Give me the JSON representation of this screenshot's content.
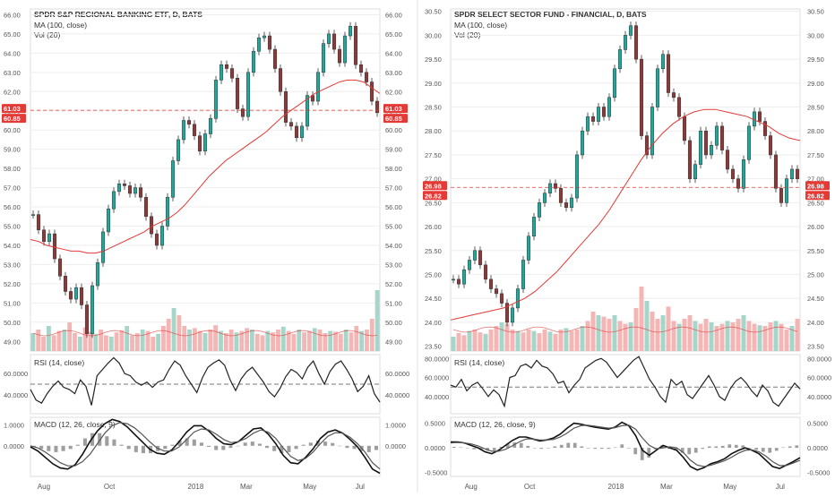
{
  "colors": {
    "up": "#26a69a",
    "down": "#ef5350",
    "candle_body": "#8b3a3a",
    "ma": "#e53935",
    "vol_up": "#a5d6c9",
    "vol_down": "#f4b5b5",
    "grid": "#eeeeee",
    "axis": "#555555",
    "price_label_bg": "#e53935",
    "text": "#333333"
  },
  "chart_data": [
    {
      "type": "line",
      "title": "SPDR S&P REGIONAL BANKING ETF, D, BATS",
      "legend": [
        "MA (100, close)",
        "Vol (20)"
      ],
      "x_labels": [
        "Aug",
        "Oct",
        "2018",
        "Mar",
        "May",
        "Jul"
      ],
      "price_axis": [
        66.0,
        65.0,
        64.0,
        63.0,
        62.0,
        61.0,
        60.0,
        59.0,
        58.0,
        57.0,
        56.0,
        55.0,
        54.0,
        53.0,
        52.0,
        51.0,
        50.0,
        49.0
      ],
      "price_range": [
        48.5,
        66.3
      ],
      "last_prices": [
        "61.03",
        "60.85"
      ],
      "price_line": 61.03,
      "close_series": [
        55.6,
        54.8,
        54.2,
        54.6,
        53.3,
        52.4,
        51.6,
        51.2,
        51.8,
        50.9,
        49.4,
        51.9,
        53.1,
        54.7,
        55.9,
        56.8,
        57.2,
        57.1,
        56.7,
        57.0,
        56.5,
        55.5,
        54.6,
        54.0,
        55.0,
        56.5,
        58.4,
        59.5,
        60.5,
        60.3,
        59.7,
        58.9,
        59.8,
        60.6,
        62.6,
        63.4,
        63.2,
        62.7,
        61.1,
        60.7,
        63.0,
        64.1,
        64.8,
        64.9,
        64.2,
        63.2,
        62.0,
        60.4,
        60.2,
        59.6,
        60.2,
        61.8,
        61.5,
        63.0,
        64.5,
        65.0,
        64.2,
        63.5,
        64.9,
        65.4,
        63.4,
        63.0,
        62.5,
        61.5,
        60.9
      ],
      "ma_series": [
        54.3,
        54.2,
        54.0,
        53.9,
        53.8,
        53.7,
        53.7,
        53.6,
        53.6,
        53.7,
        53.9,
        54.1,
        54.3,
        54.5,
        54.7,
        55.0,
        55.2,
        55.4,
        55.7,
        56.1,
        56.6,
        57.1,
        57.6,
        58.0,
        58.4,
        58.7,
        59.0,
        59.3,
        59.6,
        59.9,
        60.3,
        60.7,
        61.0,
        61.3,
        61.6,
        61.9,
        62.1,
        62.3,
        62.5,
        62.6,
        62.6,
        62.5,
        62.2,
        61.9
      ],
      "rsi": {
        "label": "RSI (14, close)",
        "axis": [
          "60.0000",
          "40.0000"
        ],
        "range": [
          22,
          78
        ],
        "level": 50,
        "series": [
          45,
          35,
          32,
          41,
          48,
          53,
          47,
          45,
          41,
          54,
          48,
          30,
          58,
          64,
          70,
          75,
          70,
          60,
          58,
          52,
          49,
          52,
          47,
          52,
          54,
          64,
          72,
          68,
          58,
          50,
          42,
          56,
          66,
          70,
          73,
          68,
          54,
          44,
          55,
          62,
          66,
          59,
          52,
          43,
          38,
          46,
          57,
          64,
          61,
          55,
          66,
          72,
          60,
          50,
          62,
          69,
          72,
          64,
          55,
          43,
          48,
          58,
          41,
          33
        ]
      },
      "macd": {
        "label": "MACD (12, 26, close, 9)",
        "axis": [
          "1.0000",
          "0.0000"
        ],
        "range": [
          -1.45,
          1.35
        ],
        "macd": [
          -0.05,
          -0.25,
          -0.55,
          -0.85,
          -1.05,
          -1.1,
          -0.9,
          -0.4,
          0.2,
          0.7,
          1.05,
          1.25,
          1.15,
          0.9,
          0.55,
          0.2,
          -0.15,
          -0.35,
          -0.4,
          -0.2,
          0.2,
          0.65,
          0.95,
          0.95,
          0.7,
          0.35,
          0.1,
          0.05,
          0.2,
          0.5,
          0.8,
          0.85,
          0.55,
          0.1,
          -0.45,
          -0.8,
          -0.85,
          -0.55,
          -0.15,
          0.35,
          0.65,
          0.75,
          0.6,
          0.3,
          -0.05,
          -0.55,
          -1.1,
          -1.3
        ],
        "signal": [
          0,
          -0.1,
          -0.3,
          -0.55,
          -0.8,
          -0.95,
          -0.95,
          -0.75,
          -0.4,
          0.1,
          0.6,
          0.95,
          1.1,
          1.05,
          0.85,
          0.55,
          0.2,
          -0.1,
          -0.25,
          -0.25,
          -0.05,
          0.3,
          0.65,
          0.8,
          0.75,
          0.55,
          0.3,
          0.15,
          0.2,
          0.35,
          0.6,
          0.75,
          0.65,
          0.35,
          -0.1,
          -0.5,
          -0.7,
          -0.6,
          -0.3,
          0.1,
          0.45,
          0.62,
          0.6,
          0.4,
          0.1,
          -0.3,
          -0.8,
          -1.1
        ]
      },
      "volume": {
        "ma_level": 0.25,
        "series": [
          0.25,
          0.3,
          0.2,
          0.35,
          0.22,
          0.28,
          0.3,
          0.4,
          0.25,
          0.2,
          0.33,
          0.27,
          0.24,
          0.3,
          0.22,
          0.2,
          0.26,
          0.29,
          0.35,
          0.22,
          0.25,
          0.3,
          0.28,
          0.2,
          0.24,
          0.35,
          0.45,
          0.6,
          0.5,
          0.35,
          0.3,
          0.32,
          0.28,
          0.25,
          0.3,
          0.36,
          0.28,
          0.25,
          0.3,
          0.26,
          0.28,
          0.32,
          0.3,
          0.24,
          0.22,
          0.28,
          0.26,
          0.3,
          0.34,
          0.28,
          0.24,
          0.3,
          0.26,
          0.28,
          0.32,
          0.3,
          0.25,
          0.28,
          0.27,
          0.24,
          0.3,
          0.26,
          0.35,
          0.28,
          0.3,
          0.45,
          0.85
        ]
      }
    },
    {
      "type": "line",
      "title": "SPDR SELECT SECTOR FUND - FINANCIAL, D, BATS",
      "legend": [
        "MA (100, close)",
        "Vol (20)"
      ],
      "x_labels": [
        "Aug",
        "Oct",
        "2018",
        "Mar",
        "May",
        "Jul"
      ],
      "price_axis": [
        30.5,
        30.0,
        29.5,
        29.0,
        28.5,
        28.0,
        27.5,
        27.0,
        26.5,
        26.0,
        25.5,
        25.0,
        24.5,
        24.0,
        23.5
      ],
      "price_range": [
        23.4,
        30.55
      ],
      "last_prices": [
        "26.98",
        "26.82"
      ],
      "price_line": 26.82,
      "close_series": [
        24.9,
        24.8,
        25.1,
        25.3,
        25.5,
        25.2,
        24.9,
        24.7,
        24.6,
        24.4,
        24.0,
        24.3,
        24.7,
        25.3,
        25.8,
        26.2,
        26.5,
        26.7,
        26.9,
        26.8,
        26.5,
        26.4,
        26.6,
        27.5,
        28.0,
        28.3,
        28.2,
        28.5,
        28.3,
        28.7,
        29.3,
        29.7,
        30.0,
        30.2,
        29.5,
        27.9,
        27.5,
        28.5,
        29.3,
        29.6,
        28.8,
        28.7,
        28.3,
        27.8,
        27.0,
        27.3,
        28.0,
        27.5,
        27.7,
        28.1,
        27.6,
        27.2,
        27.0,
        26.8,
        27.4,
        28.1,
        28.4,
        28.2,
        27.9,
        27.5,
        26.8,
        26.5,
        27.0,
        27.2,
        27.0
      ],
      "ma_series": [
        24.05,
        24.1,
        24.15,
        24.2,
        24.25,
        24.3,
        24.4,
        24.5,
        24.65,
        24.85,
        25.05,
        25.3,
        25.55,
        25.8,
        26.05,
        26.35,
        26.7,
        27.05,
        27.4,
        27.7,
        27.95,
        28.15,
        28.3,
        28.4,
        28.45,
        28.45,
        28.4,
        28.35,
        28.3,
        28.2,
        28.1,
        27.95,
        27.85,
        27.8
      ],
      "rsi": {
        "label": "RSI (14, close)",
        "axis": [
          "80.0000",
          "60.0000",
          "40.0000"
        ],
        "range": [
          22,
          84
        ],
        "level": 50,
        "series": [
          52,
          50,
          58,
          46,
          52,
          55,
          48,
          40,
          47,
          42,
          30,
          60,
          62,
          72,
          74,
          70,
          78,
          72,
          70,
          64,
          54,
          56,
          44,
          52,
          58,
          70,
          74,
          78,
          80,
          76,
          68,
          60,
          66,
          72,
          78,
          82,
          70,
          58,
          50,
          40,
          34,
          58,
          52,
          56,
          42,
          38,
          46,
          54,
          62,
          52,
          40,
          36,
          48,
          56,
          60,
          54,
          46,
          40,
          52,
          46,
          34,
          30,
          38,
          46,
          54,
          48
        ]
      },
      "macd": {
        "label": "MACD (12, 26, close, 9)",
        "axis": [
          "0.5000",
          "0.0000",
          "-0.5000"
        ],
        "range": [
          -0.58,
          0.62
        ],
        "macd": [
          0.12,
          0.12,
          0.1,
          0.05,
          0.0,
          -0.08,
          -0.12,
          -0.05,
          0.05,
          0.15,
          0.22,
          0.22,
          0.18,
          0.14,
          0.16,
          0.2,
          0.28,
          0.4,
          0.5,
          0.48,
          0.45,
          0.42,
          0.4,
          0.38,
          0.42,
          0.52,
          0.45,
          0.25,
          -0.05,
          -0.15,
          -0.05,
          0.05,
          0.0,
          -0.05,
          -0.2,
          -0.38,
          -0.45,
          -0.4,
          -0.32,
          -0.28,
          -0.22,
          -0.12,
          -0.05,
          0.0,
          -0.05,
          -0.12,
          -0.25,
          -0.38,
          -0.42,
          -0.35,
          -0.28,
          -0.2
        ],
        "signal": [
          0.1,
          0.11,
          0.1,
          0.08,
          0.04,
          -0.02,
          -0.07,
          -0.07,
          -0.03,
          0.04,
          0.12,
          0.18,
          0.18,
          0.16,
          0.16,
          0.17,
          0.22,
          0.3,
          0.4,
          0.45,
          0.46,
          0.44,
          0.42,
          0.4,
          0.41,
          0.45,
          0.46,
          0.38,
          0.2,
          0.05,
          -0.02,
          0.0,
          0.02,
          0.0,
          -0.1,
          -0.25,
          -0.35,
          -0.38,
          -0.35,
          -0.31,
          -0.26,
          -0.19,
          -0.11,
          -0.05,
          -0.04,
          -0.08,
          -0.17,
          -0.28,
          -0.36,
          -0.36,
          -0.31,
          -0.25
        ]
      },
      "volume": {
        "ma_level": 0.3,
        "series": [
          0.2,
          0.25,
          0.22,
          0.28,
          0.3,
          0.26,
          0.24,
          0.3,
          0.35,
          0.4,
          0.38,
          0.3,
          0.28,
          0.26,
          0.3,
          0.28,
          0.25,
          0.3,
          0.27,
          0.24,
          0.3,
          0.32,
          0.28,
          0.3,
          0.35,
          0.42,
          0.55,
          0.5,
          0.48,
          0.45,
          0.5,
          0.42,
          0.38,
          0.4,
          0.6,
          0.9,
          0.7,
          0.55,
          0.45,
          0.5,
          0.62,
          0.42,
          0.38,
          0.45,
          0.5,
          0.42,
          0.38,
          0.45,
          0.4,
          0.35,
          0.38,
          0.42,
          0.4,
          0.45,
          0.5,
          0.42,
          0.38,
          0.36,
          0.35,
          0.4,
          0.42,
          0.38,
          0.3,
          0.35,
          0.45
        ]
      }
    }
  ]
}
